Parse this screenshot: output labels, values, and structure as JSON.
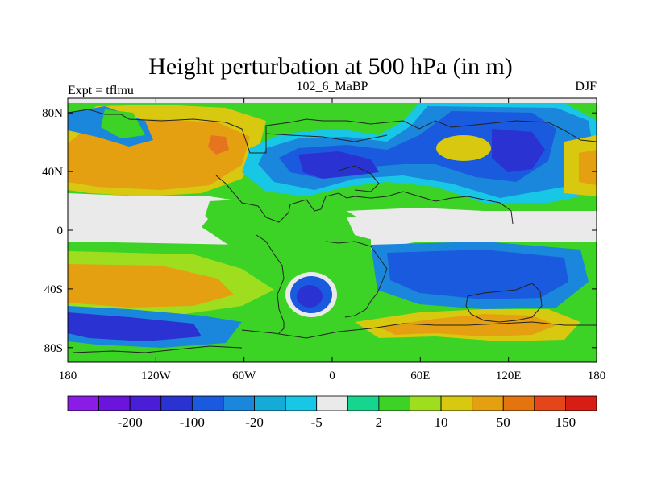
{
  "chart_data": {
    "type": "heatmap",
    "title": "Height perturbation at 500 hPa (in m)",
    "left_string": "Expt = tflmu",
    "center_string": "102_6_MaBP",
    "right_string": "DJF",
    "x_ticks": [
      {
        "value": -180,
        "label": "180"
      },
      {
        "value": -120,
        "label": "120W"
      },
      {
        "value": -60,
        "label": "60W"
      },
      {
        "value": 0,
        "label": "0"
      },
      {
        "value": 60,
        "label": "60E"
      },
      {
        "value": 120,
        "label": "120E"
      },
      {
        "value": 180,
        "label": "180"
      }
    ],
    "y_ticks": [
      {
        "value": 80,
        "label": "80N"
      },
      {
        "value": 40,
        "label": "40N"
      },
      {
        "value": 0,
        "label": "0"
      },
      {
        "value": -40,
        "label": "40S"
      },
      {
        "value": -80,
        "label": "80S"
      }
    ],
    "xlim": [
      -180,
      180
    ],
    "ylim": [
      -90,
      90
    ],
    "colorbar": {
      "colors": [
        "#8a1ce6",
        "#6a14dc",
        "#4a1ed6",
        "#2a32d2",
        "#1a5ade",
        "#1a86dc",
        "#16aad8",
        "#18c6e6",
        "#eaeaea",
        "#16d68e",
        "#3cd226",
        "#9ede1e",
        "#d8c810",
        "#e4a010",
        "#e4740e",
        "#e4461a",
        "#d81e14"
      ],
      "tick_labels": [
        {
          "index": 1,
          "label": "-200"
        },
        {
          "index": 3,
          "label": "-100"
        },
        {
          "index": 5,
          "label": "-20"
        },
        {
          "index": 7,
          "label": "-5"
        },
        {
          "index": 9,
          "label": "2"
        },
        {
          "index": 11,
          "label": "10"
        },
        {
          "index": 13,
          "label": "50"
        },
        {
          "index": 15,
          "label": "150"
        }
      ]
    }
  }
}
